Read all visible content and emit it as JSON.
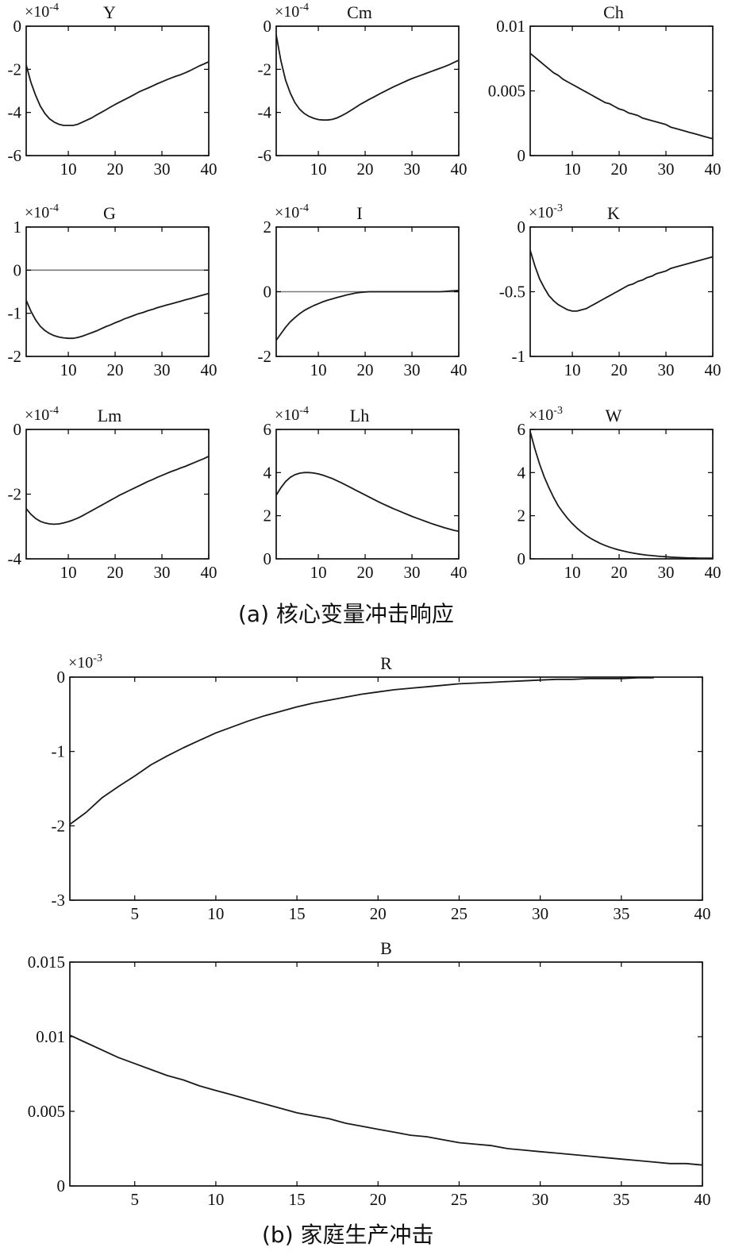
{
  "captions": {
    "a": "(a) 核心变量冲击响应",
    "b": "(b) 家庭生产冲击"
  },
  "style": {
    "line_color": "#1a1a1a",
    "zero_line_color": "#7a7a7a",
    "axis_color": "#000000"
  },
  "chart_data": [
    {
      "type": "line",
      "title": "Y",
      "multiplier": "×10-4",
      "x": [
        1,
        2,
        3,
        4,
        5,
        6,
        7,
        8,
        9,
        10,
        11,
        12,
        13,
        14,
        15,
        16,
        17,
        18,
        19,
        20,
        21,
        22,
        23,
        24,
        25,
        26,
        27,
        28,
        29,
        30,
        31,
        32,
        33,
        34,
        35,
        36,
        37,
        38,
        39,
        40
      ],
      "series": [
        {
          "values": [
            -1.8,
            -2.6,
            -3.2,
            -3.7,
            -4.05,
            -4.3,
            -4.45,
            -4.55,
            -4.6,
            -4.6,
            -4.6,
            -4.55,
            -4.45,
            -4.35,
            -4.25,
            -4.12,
            -4.0,
            -3.88,
            -3.75,
            -3.63,
            -3.52,
            -3.41,
            -3.3,
            -3.18,
            -3.06,
            -2.96,
            -2.87,
            -2.77,
            -2.67,
            -2.58,
            -2.49,
            -2.4,
            -2.32,
            -2.25,
            -2.16,
            -2.06,
            -1.95,
            -1.84,
            -1.75,
            -1.65
          ]
        }
      ],
      "xticks": [
        10,
        20,
        30,
        40
      ],
      "yticks": [
        0,
        -2,
        -4,
        -6
      ],
      "ytick_labels": [
        "0",
        "-2",
        "-4",
        "-6"
      ],
      "xlim": [
        1,
        40
      ],
      "ylim": [
        -6,
        0
      ]
    },
    {
      "type": "line",
      "title": "Cm",
      "multiplier": "×10-4",
      "x": [
        1,
        2,
        3,
        4,
        5,
        6,
        7,
        8,
        9,
        10,
        11,
        12,
        13,
        14,
        15,
        16,
        17,
        18,
        19,
        20,
        21,
        22,
        23,
        24,
        25,
        26,
        27,
        28,
        29,
        30,
        31,
        32,
        33,
        34,
        35,
        36,
        37,
        38,
        39,
        40
      ],
      "series": [
        {
          "values": [
            -0.4,
            -1.6,
            -2.5,
            -3.1,
            -3.55,
            -3.85,
            -4.05,
            -4.18,
            -4.27,
            -4.33,
            -4.35,
            -4.35,
            -4.32,
            -4.25,
            -4.15,
            -4.03,
            -3.9,
            -3.76,
            -3.62,
            -3.5,
            -3.38,
            -3.27,
            -3.15,
            -3.04,
            -2.93,
            -2.82,
            -2.72,
            -2.62,
            -2.52,
            -2.43,
            -2.35,
            -2.27,
            -2.19,
            -2.11,
            -2.03,
            -1.95,
            -1.87,
            -1.78,
            -1.68,
            -1.58
          ]
        }
      ],
      "xticks": [
        10,
        20,
        30,
        40
      ],
      "yticks": [
        0,
        -2,
        -4,
        -6
      ],
      "ytick_labels": [
        "0",
        "-2",
        "-4",
        "-6"
      ],
      "xlim": [
        1,
        40
      ],
      "ylim": [
        -6,
        0
      ]
    },
    {
      "type": "line",
      "title": "Ch",
      "multiplier": "",
      "x": [
        1,
        2,
        3,
        4,
        5,
        6,
        7,
        8,
        9,
        10,
        11,
        12,
        13,
        14,
        15,
        16,
        17,
        18,
        19,
        20,
        21,
        22,
        23,
        24,
        25,
        26,
        27,
        28,
        29,
        30,
        31,
        32,
        33,
        34,
        35,
        36,
        37,
        38,
        39,
        40
      ],
      "series": [
        {
          "values": [
            0.0079,
            0.0076,
            0.0073,
            0.007,
            0.0067,
            0.0064,
            0.0062,
            0.0059,
            0.0057,
            0.0055,
            0.0053,
            0.0051,
            0.0049,
            0.0047,
            0.0045,
            0.0043,
            0.0041,
            0.004,
            0.0038,
            0.0036,
            0.0035,
            0.0033,
            0.0032,
            0.0031,
            0.0029,
            0.0028,
            0.0027,
            0.0026,
            0.0025,
            0.0024,
            0.0022,
            0.0021,
            0.002,
            0.0019,
            0.0018,
            0.0017,
            0.0016,
            0.0015,
            0.0014,
            0.0013
          ]
        }
      ],
      "xticks": [
        10,
        20,
        30,
        40
      ],
      "yticks": [
        0,
        0.005,
        0.01
      ],
      "ytick_labels": [
        "0",
        "0.005",
        "0.01"
      ],
      "xlim": [
        1,
        40
      ],
      "ylim": [
        0,
        0.01
      ]
    },
    {
      "type": "line",
      "title": "G",
      "multiplier": "×10-4",
      "zero_line": true,
      "x": [
        1,
        2,
        3,
        4,
        5,
        6,
        7,
        8,
        9,
        10,
        11,
        12,
        13,
        14,
        15,
        16,
        17,
        18,
        19,
        20,
        21,
        22,
        23,
        24,
        25,
        26,
        27,
        28,
        29,
        30,
        31,
        32,
        33,
        34,
        35,
        36,
        37,
        38,
        39,
        40
      ],
      "series": [
        {
          "values": [
            -0.7,
            -0.95,
            -1.15,
            -1.3,
            -1.4,
            -1.47,
            -1.52,
            -1.55,
            -1.57,
            -1.58,
            -1.58,
            -1.56,
            -1.53,
            -1.49,
            -1.45,
            -1.41,
            -1.36,
            -1.31,
            -1.27,
            -1.22,
            -1.18,
            -1.13,
            -1.09,
            -1.05,
            -1.01,
            -0.98,
            -0.94,
            -0.91,
            -0.87,
            -0.84,
            -0.81,
            -0.78,
            -0.75,
            -0.72,
            -0.69,
            -0.66,
            -0.63,
            -0.6,
            -0.57,
            -0.54
          ]
        }
      ],
      "xticks": [
        10,
        20,
        30,
        40
      ],
      "yticks": [
        1,
        0,
        -1,
        -2
      ],
      "ytick_labels": [
        "1",
        "0",
        "-1",
        "-2"
      ],
      "xlim": [
        1,
        40
      ],
      "ylim": [
        -2,
        1
      ]
    },
    {
      "type": "line",
      "title": "I",
      "multiplier": "×10-4",
      "zero_line": true,
      "x": [
        1,
        2,
        3,
        4,
        5,
        6,
        7,
        8,
        9,
        10,
        11,
        12,
        13,
        14,
        15,
        16,
        17,
        18,
        19,
        20,
        21,
        22,
        23,
        24,
        25,
        26,
        27,
        28,
        29,
        30,
        31,
        32,
        33,
        34,
        35,
        36,
        37,
        38,
        39,
        40
      ],
      "series": [
        {
          "values": [
            -1.5,
            -1.3,
            -1.1,
            -0.93,
            -0.8,
            -0.68,
            -0.58,
            -0.5,
            -0.43,
            -0.37,
            -0.31,
            -0.26,
            -0.22,
            -0.18,
            -0.14,
            -0.1,
            -0.07,
            -0.04,
            -0.02,
            -0.01,
            0,
            0,
            0,
            0,
            0,
            0,
            0,
            0,
            0,
            0,
            0,
            0,
            0,
            0,
            0,
            0,
            0.01,
            0.02,
            0.03,
            0.04
          ]
        }
      ],
      "xticks": [
        10,
        20,
        30,
        40
      ],
      "yticks": [
        2,
        0,
        -2
      ],
      "ytick_labels": [
        "2",
        "0",
        "-2"
      ],
      "xlim": [
        1,
        40
      ],
      "ylim": [
        -2,
        2
      ]
    },
    {
      "type": "line",
      "title": "K",
      "multiplier": "×10-3",
      "x": [
        1,
        2,
        3,
        4,
        5,
        6,
        7,
        8,
        9,
        10,
        11,
        12,
        13,
        14,
        15,
        16,
        17,
        18,
        19,
        20,
        21,
        22,
        23,
        24,
        25,
        26,
        27,
        28,
        29,
        30,
        31,
        32,
        33,
        34,
        35,
        36,
        37,
        38,
        39,
        40
      ],
      "series": [
        {
          "values": [
            -0.18,
            -0.3,
            -0.4,
            -0.47,
            -0.53,
            -0.57,
            -0.6,
            -0.62,
            -0.64,
            -0.65,
            -0.65,
            -0.64,
            -0.63,
            -0.61,
            -0.59,
            -0.57,
            -0.55,
            -0.53,
            -0.51,
            -0.49,
            -0.47,
            -0.45,
            -0.44,
            -0.42,
            -0.41,
            -0.39,
            -0.38,
            -0.36,
            -0.35,
            -0.34,
            -0.32,
            -0.31,
            -0.3,
            -0.29,
            -0.28,
            -0.27,
            -0.26,
            -0.25,
            -0.24,
            -0.23
          ]
        }
      ],
      "xticks": [
        10,
        20,
        30,
        40
      ],
      "yticks": [
        0,
        -0.5,
        -1
      ],
      "ytick_labels": [
        "0",
        "-0.5",
        "-1"
      ],
      "xlim": [
        1,
        40
      ],
      "ylim": [
        -1,
        0
      ]
    },
    {
      "type": "line",
      "title": "Lm",
      "multiplier": "×10-4",
      "x": [
        1,
        2,
        3,
        4,
        5,
        6,
        7,
        8,
        9,
        10,
        11,
        12,
        13,
        14,
        15,
        16,
        17,
        18,
        19,
        20,
        21,
        22,
        23,
        24,
        25,
        26,
        27,
        28,
        29,
        30,
        31,
        32,
        33,
        34,
        35,
        36,
        37,
        38,
        39,
        40
      ],
      "series": [
        {
          "values": [
            -2.45,
            -2.62,
            -2.75,
            -2.84,
            -2.89,
            -2.92,
            -2.93,
            -2.92,
            -2.89,
            -2.85,
            -2.8,
            -2.74,
            -2.67,
            -2.59,
            -2.51,
            -2.43,
            -2.35,
            -2.27,
            -2.19,
            -2.11,
            -2.03,
            -1.96,
            -1.89,
            -1.82,
            -1.75,
            -1.68,
            -1.61,
            -1.55,
            -1.48,
            -1.42,
            -1.36,
            -1.3,
            -1.25,
            -1.19,
            -1.14,
            -1.08,
            -1.02,
            -0.96,
            -0.9,
            -0.83
          ]
        }
      ],
      "xticks": [
        10,
        20,
        30,
        40
      ],
      "yticks": [
        0,
        -2,
        -4
      ],
      "ytick_labels": [
        "0",
        "-2",
        "-4"
      ],
      "xlim": [
        1,
        40
      ],
      "ylim": [
        -4,
        0
      ]
    },
    {
      "type": "line",
      "title": "Lh",
      "multiplier": "×10-4",
      "x": [
        1,
        2,
        3,
        4,
        5,
        6,
        7,
        8,
        9,
        10,
        11,
        12,
        13,
        14,
        15,
        16,
        17,
        18,
        19,
        20,
        21,
        22,
        23,
        24,
        25,
        26,
        27,
        28,
        29,
        30,
        31,
        32,
        33,
        34,
        35,
        36,
        37,
        38,
        39,
        40
      ],
      "series": [
        {
          "values": [
            2.95,
            3.3,
            3.58,
            3.78,
            3.9,
            3.97,
            4.0,
            4.0,
            3.98,
            3.94,
            3.88,
            3.8,
            3.72,
            3.62,
            3.52,
            3.41,
            3.3,
            3.18,
            3.07,
            2.96,
            2.85,
            2.74,
            2.63,
            2.53,
            2.43,
            2.33,
            2.24,
            2.15,
            2.06,
            1.97,
            1.89,
            1.81,
            1.73,
            1.65,
            1.58,
            1.51,
            1.44,
            1.38,
            1.32,
            1.28
          ]
        }
      ],
      "xticks": [
        10,
        20,
        30,
        40
      ],
      "yticks": [
        6,
        4,
        2,
        0
      ],
      "ytick_labels": [
        "6",
        "4",
        "2",
        "0"
      ],
      "xlim": [
        1,
        40
      ],
      "ylim": [
        0,
        6
      ]
    },
    {
      "type": "line",
      "title": "W",
      "multiplier": "×10-3",
      "x": [
        1,
        2,
        3,
        4,
        5,
        6,
        7,
        8,
        9,
        10,
        11,
        12,
        13,
        14,
        15,
        16,
        17,
        18,
        19,
        20,
        21,
        22,
        23,
        24,
        25,
        26,
        27,
        28,
        29,
        30,
        31,
        32,
        33,
        34,
        35,
        36,
        37,
        38,
        39,
        40
      ],
      "series": [
        {
          "values": [
            5.9,
            5.1,
            4.4,
            3.8,
            3.3,
            2.85,
            2.45,
            2.15,
            1.87,
            1.63,
            1.42,
            1.24,
            1.08,
            0.94,
            0.82,
            0.71,
            0.62,
            0.54,
            0.47,
            0.41,
            0.36,
            0.31,
            0.27,
            0.23,
            0.2,
            0.17,
            0.15,
            0.13,
            0.11,
            0.1,
            0.08,
            0.07,
            0.06,
            0.05,
            0.04,
            0.04,
            0.03,
            0.03,
            0.03,
            0.03
          ]
        }
      ],
      "xticks": [
        10,
        20,
        30,
        40
      ],
      "yticks": [
        6,
        4,
        2,
        0
      ],
      "ytick_labels": [
        "6",
        "4",
        "2",
        "0"
      ],
      "xlim": [
        1,
        40
      ],
      "ylim": [
        0,
        6
      ]
    },
    {
      "type": "line",
      "title": "R",
      "multiplier": "×10-3",
      "x": [
        1,
        2,
        3,
        4,
        5,
        6,
        7,
        8,
        9,
        10,
        11,
        12,
        13,
        14,
        15,
        16,
        17,
        18,
        19,
        20,
        21,
        22,
        23,
        24,
        25,
        26,
        27,
        28,
        29,
        30,
        31,
        32,
        33,
        34,
        35,
        36,
        37
      ],
      "series": [
        {
          "values": [
            -1.98,
            -1.82,
            -1.62,
            -1.47,
            -1.33,
            -1.18,
            -1.06,
            -0.95,
            -0.85,
            -0.75,
            -0.67,
            -0.59,
            -0.52,
            -0.46,
            -0.4,
            -0.35,
            -0.31,
            -0.27,
            -0.23,
            -0.2,
            -0.17,
            -0.15,
            -0.13,
            -0.11,
            -0.09,
            -0.08,
            -0.07,
            -0.06,
            -0.05,
            -0.04,
            -0.03,
            -0.03,
            -0.02,
            -0.02,
            -0.02,
            -0.01,
            -0.01
          ]
        }
      ],
      "xticks": [
        5,
        10,
        15,
        20,
        25,
        30,
        35,
        40
      ],
      "yticks": [
        0,
        -1,
        -2,
        -3
      ],
      "ytick_labels": [
        "0",
        "-1",
        "-2",
        "-3"
      ],
      "xlim": [
        1,
        40
      ],
      "ylim": [
        -3,
        0
      ]
    },
    {
      "type": "line",
      "title": "B",
      "multiplier": "",
      "x": [
        1,
        2,
        3,
        4,
        5,
        6,
        7,
        8,
        9,
        10,
        11,
        12,
        13,
        14,
        15,
        16,
        17,
        18,
        19,
        20,
        21,
        22,
        23,
        24,
        25,
        26,
        27,
        28,
        29,
        30,
        31,
        32,
        33,
        34,
        35,
        36,
        37,
        38,
        39,
        40
      ],
      "series": [
        {
          "values": [
            0.0101,
            0.0096,
            0.0091,
            0.0086,
            0.0082,
            0.0078,
            0.0074,
            0.0071,
            0.0067,
            0.0064,
            0.0061,
            0.0058,
            0.0055,
            0.0052,
            0.0049,
            0.0047,
            0.0045,
            0.0042,
            0.004,
            0.0038,
            0.0036,
            0.0034,
            0.0033,
            0.0031,
            0.0029,
            0.0028,
            0.0027,
            0.0025,
            0.0024,
            0.0023,
            0.0022,
            0.0021,
            0.002,
            0.0019,
            0.0018,
            0.0017,
            0.0016,
            0.0015,
            0.0015,
            0.0014
          ]
        }
      ],
      "xticks": [
        5,
        10,
        15,
        20,
        25,
        30,
        35,
        40
      ],
      "yticks": [
        0.015,
        0.01,
        0.005,
        0
      ],
      "ytick_labels": [
        "0.015",
        "0.01",
        "0.005",
        "0"
      ],
      "xlim": [
        1,
        40
      ],
      "ylim": [
        0,
        0.015
      ]
    }
  ]
}
